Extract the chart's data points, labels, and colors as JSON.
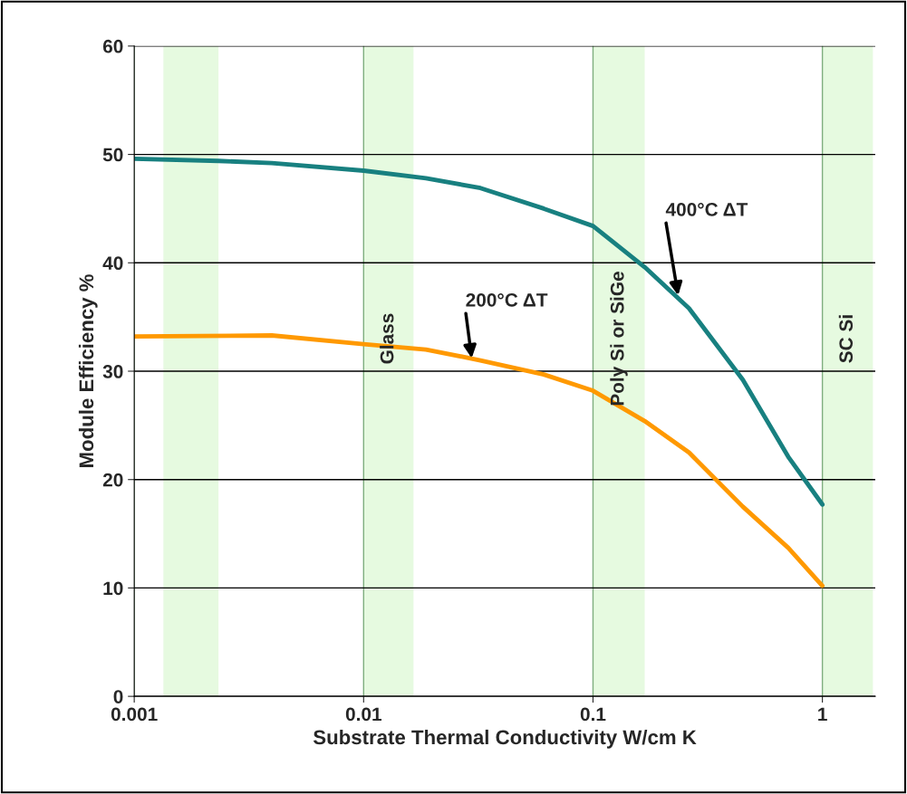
{
  "chart_data": {
    "type": "line",
    "xlabel": "Substrate Thermal Conductivity W/cm K",
    "ylabel": "Module Efficiency %",
    "log": "x",
    "xlim": [
      0.001,
      1.7
    ],
    "xticks": [
      0.001,
      0.01,
      0.1,
      1
    ],
    "ylim": [
      0,
      60
    ],
    "yticks": [
      0,
      10,
      20,
      30,
      40,
      50,
      60
    ],
    "grid": true,
    "marker": "none",
    "line_style": "solid",
    "series": [
      {
        "color": "#188080",
        "x": [
          0.001,
          0.00233,
          0.00398,
          0.01,
          0.0187,
          0.0323,
          0.061,
          0.1,
          0.168,
          0.262,
          0.45,
          0.71,
          1
        ],
        "values": [
          49.6,
          49.4,
          49.2,
          48.5,
          47.8,
          46.9,
          45.0,
          43.4,
          39.6,
          35.8,
          29.2,
          22.1,
          17.7
        ]
      },
      {
        "color": "#ff9900",
        "x": [
          0.001,
          0.00398,
          0.01,
          0.0187,
          0.0323,
          0.061,
          0.1,
          0.168,
          0.262,
          0.45,
          0.71,
          1
        ],
        "values": [
          33.2,
          33.3,
          32.5,
          32.0,
          31.0,
          29.7,
          28.2,
          25.4,
          22.5,
          17.5,
          13.7,
          10.2
        ]
      }
    ],
    "bands": [
      {
        "axis": "x",
        "from": 0.00134,
        "to": 0.00233,
        "color": "#e6fae0"
      },
      {
        "axis": "x",
        "from": 0.01,
        "to": 0.0165,
        "label": "Glass",
        "color": "#e6fae0"
      },
      {
        "axis": "x",
        "from": 0.1,
        "to": 0.168,
        "label": "Poly Si or SiGe",
        "color": "#e6fae0"
      },
      {
        "axis": "x",
        "from": 1,
        "to": 1.66,
        "label": "SC Si",
        "color": "#e6fae0"
      }
    ],
    "annotations": [
      {
        "text": "400°C ΔT",
        "x": 0.235,
        "y": 37.0
      },
      {
        "text": "200°C ΔT",
        "x": 0.0296,
        "y": 31.2
      }
    ]
  }
}
